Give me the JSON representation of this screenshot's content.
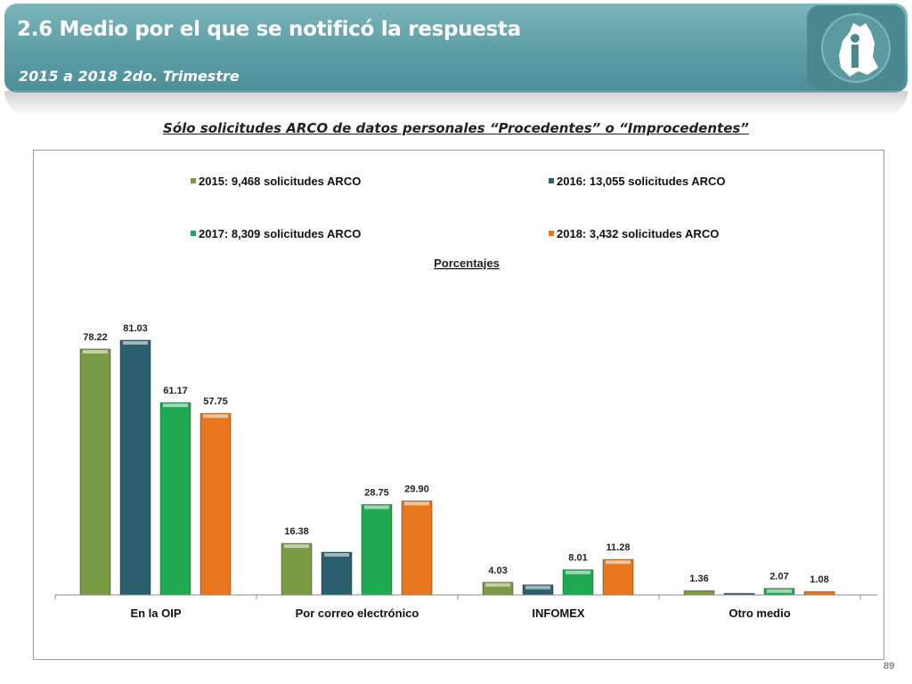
{
  "slide": {
    "title": "2.6 Medio por el que se notificó la respuesta",
    "subtitle": "2015 a 2018 2do. Trimestre",
    "heading": "Sólo solicitudes ARCO de datos personales “Procedentes” o “Improcedentes”",
    "page_number": "89"
  },
  "colors": {
    "header": "#5b9da4",
    "series": [
      "#7a9a44",
      "#2b5e6e",
      "#1faa52",
      "#e8761e"
    ]
  },
  "chart_data": {
    "type": "bar",
    "title": "Porcentajes",
    "categories": [
      "En la OIP",
      "Por correo electrónico",
      "INFOMEX",
      "Otro medio"
    ],
    "series": [
      {
        "name": "2015: 9,468 solicitudes ARCO",
        "values": [
          78.22,
          16.38,
          4.03,
          1.36
        ],
        "labels": [
          "78.22",
          "16.38",
          "4.03",
          "1.36"
        ]
      },
      {
        "name": "2016: 13,055 solicitudes ARCO",
        "values": [
          81.03,
          13.6,
          3.2,
          0.5
        ],
        "labels": [
          "81.03",
          "",
          "",
          ""
        ]
      },
      {
        "name": "2017: 8,309 solicitudes ARCO",
        "values": [
          61.17,
          28.75,
          8.01,
          2.07
        ],
        "labels": [
          "61.17",
          "28.75",
          "8.01",
          "2.07"
        ]
      },
      {
        "name": "2018: 3,432 solicitudes ARCO",
        "values": [
          57.75,
          29.9,
          11.28,
          1.08
        ],
        "labels": [
          "57.75",
          "29.90",
          "11.28",
          "1.08"
        ]
      }
    ],
    "ylim": [
      0,
      100
    ],
    "legend_position": "top",
    "grid": false
  }
}
